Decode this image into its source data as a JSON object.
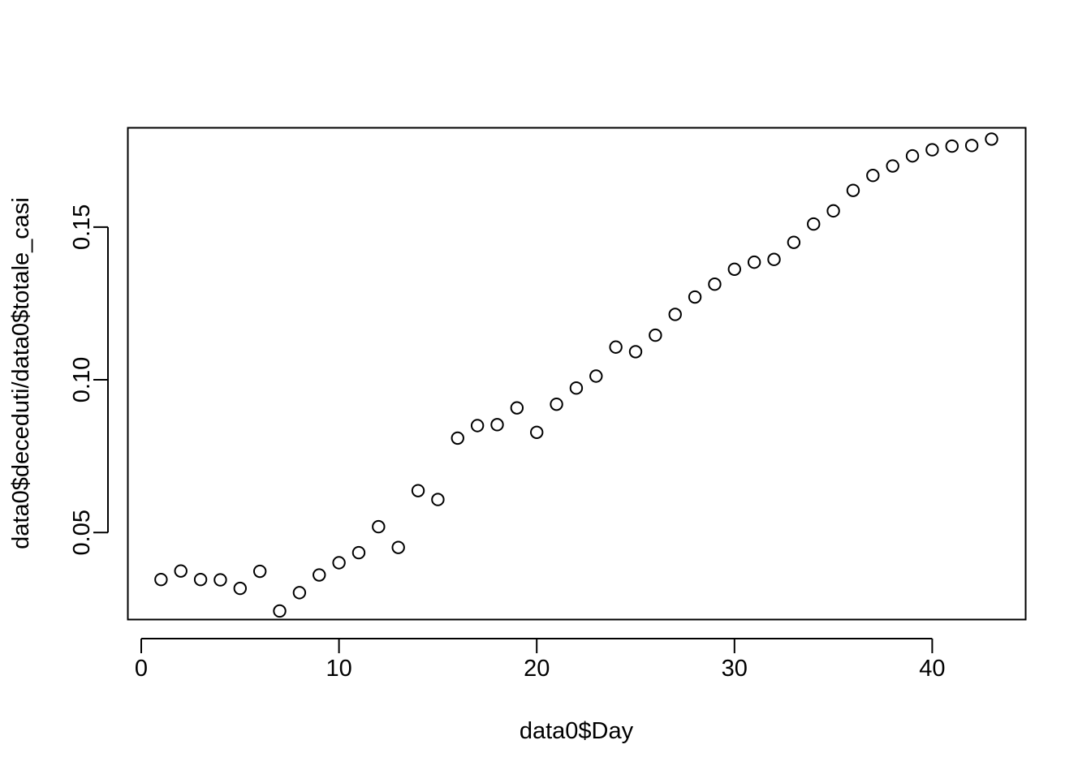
{
  "chart_data": {
    "type": "scatter",
    "title": "",
    "xlabel": "data0$Day",
    "ylabel": "data0$deceduti/data0$totale_casi",
    "xlim": [
      0,
      44.8
    ],
    "ylim": [
      0.0215,
      0.1825
    ],
    "xticks": [
      0,
      10,
      20,
      30,
      40
    ],
    "xtick_labels": [
      "0",
      "10",
      "20",
      "30",
      "40"
    ],
    "yticks": [
      0.05,
      0.1,
      0.15
    ],
    "ytick_labels": [
      "0.05",
      "0.10",
      "0.15"
    ],
    "grid": false,
    "marker": "open-circle",
    "x": [
      1,
      2,
      3,
      4,
      5,
      6,
      7,
      8,
      9,
      10,
      11,
      12,
      13,
      14,
      15,
      16,
      17,
      18,
      19,
      20,
      21,
      22,
      23,
      24,
      25,
      26,
      27,
      28,
      29,
      30,
      31,
      32,
      33,
      34,
      35,
      36,
      37,
      38,
      39,
      40,
      41,
      42,
      43
    ],
    "y": [
      0.0346,
      0.0374,
      0.0346,
      0.0345,
      0.0317,
      0.0373,
      0.0243,
      0.0303,
      0.0361,
      0.0401,
      0.0434,
      0.0519,
      0.0451,
      0.0637,
      0.0608,
      0.0809,
      0.085,
      0.0853,
      0.0908,
      0.0828,
      0.092,
      0.0973,
      0.1012,
      0.1107,
      0.1092,
      0.1146,
      0.1214,
      0.1271,
      0.1313,
      0.1362,
      0.1385,
      0.1394,
      0.145,
      0.151,
      0.1553,
      0.162,
      0.1669,
      0.17,
      0.1733,
      0.1753,
      0.1765,
      0.1767,
      0.1788
    ]
  }
}
